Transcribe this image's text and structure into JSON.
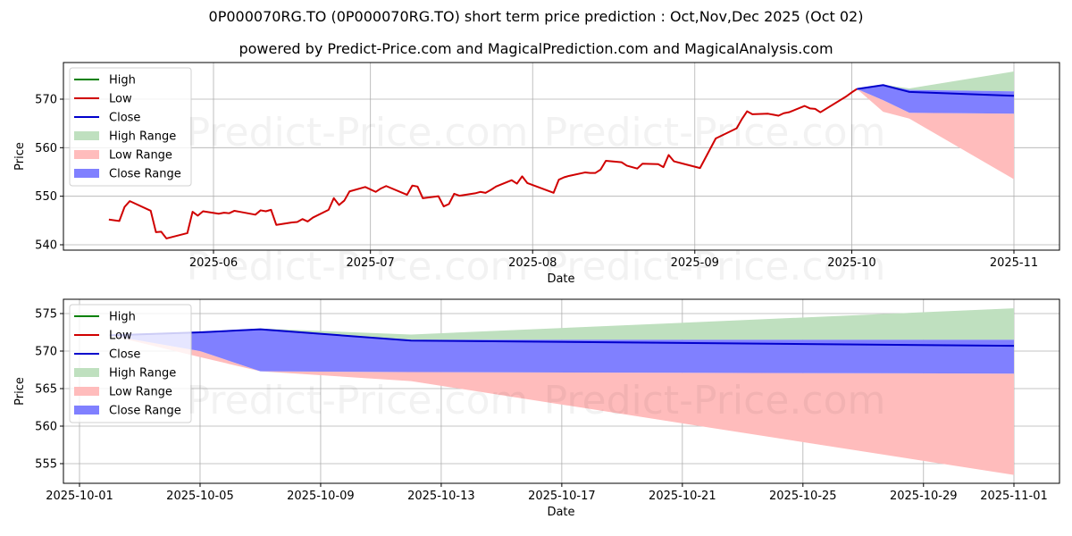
{
  "header": {
    "title": "0P000070RG.TO (0P000070RG.TO) short term price prediction : Oct,Nov,Dec 2025 (Oct 02)",
    "subtitle": "powered by Predict-Price.com and MagicalPrediction.com and MagicalAnalysis.com"
  },
  "watermark": "Predict-Price.com",
  "colors": {
    "high": "#008000",
    "low": "#d00000",
    "close": "#0000cc",
    "high_range": "#bfe0bf",
    "low_range": "#ffbcbc",
    "close_range": "#8080ff",
    "grid": "#b0b0b0"
  },
  "legend": [
    {
      "label": "High",
      "type": "line",
      "color_key": "high"
    },
    {
      "label": "Low",
      "type": "line",
      "color_key": "low"
    },
    {
      "label": "Close",
      "type": "line",
      "color_key": "close"
    },
    {
      "label": "High Range",
      "type": "patch",
      "color_key": "high_range"
    },
    {
      "label": "Low Range",
      "type": "patch",
      "color_key": "low_range"
    },
    {
      "label": "Close Range",
      "type": "patch",
      "color_key": "close_range"
    }
  ],
  "chart_data": [
    {
      "id": "overview",
      "type": "line",
      "title": "",
      "xlabel": "Date",
      "ylabel": "Price",
      "ylim": [
        539.5,
        577.5
      ],
      "yticks": [
        540,
        550,
        560,
        570
      ],
      "xticks": [
        "2025-06",
        "2025-07",
        "2025-08",
        "2025-09",
        "2025-10",
        "2025-11"
      ],
      "xrange": [
        "2025-05-07",
        "2025-11-10"
      ],
      "grid": true,
      "legend_position": "upper left",
      "history": {
        "name": "Low",
        "x": [
          "2025-05-12",
          "2025-05-14",
          "2025-05-15",
          "2025-05-16",
          "2025-05-20",
          "2025-05-21",
          "2025-05-22",
          "2025-05-23",
          "2025-05-27",
          "2025-05-28",
          "2025-05-29",
          "2025-05-30",
          "2025-06-02",
          "2025-06-03",
          "2025-06-04",
          "2025-06-05",
          "2025-06-06",
          "2025-06-09",
          "2025-06-10",
          "2025-06-11",
          "2025-06-12",
          "2025-06-13",
          "2025-06-16",
          "2025-06-17",
          "2025-06-18",
          "2025-06-19",
          "2025-06-20",
          "2025-06-23",
          "2025-06-24",
          "2025-06-25",
          "2025-06-26",
          "2025-06-27",
          "2025-06-30",
          "2025-07-02",
          "2025-07-03",
          "2025-07-04",
          "2025-07-08",
          "2025-07-09",
          "2025-07-10",
          "2025-07-11",
          "2025-07-14",
          "2025-07-15",
          "2025-07-16",
          "2025-07-17",
          "2025-07-18",
          "2025-07-21",
          "2025-07-22",
          "2025-07-23",
          "2025-07-24",
          "2025-07-25",
          "2025-07-28",
          "2025-07-29",
          "2025-07-30",
          "2025-07-31",
          "2025-08-05",
          "2025-08-06",
          "2025-08-07",
          "2025-08-08",
          "2025-08-11",
          "2025-08-12",
          "2025-08-13",
          "2025-08-14",
          "2025-08-15",
          "2025-08-18",
          "2025-08-19",
          "2025-08-20",
          "2025-08-21",
          "2025-08-22",
          "2025-08-25",
          "2025-08-26",
          "2025-08-27",
          "2025-08-28",
          "2025-09-02",
          "2025-09-05",
          "2025-09-09",
          "2025-09-10",
          "2025-09-11",
          "2025-09-12",
          "2025-09-15",
          "2025-09-16",
          "2025-09-17",
          "2025-09-18",
          "2025-09-19",
          "2025-09-22",
          "2025-09-23",
          "2025-09-24",
          "2025-09-25",
          "2025-09-30",
          "2025-10-01",
          "2025-10-02"
        ],
        "values": [
          545.2,
          544.9,
          547.8,
          549.0,
          547.0,
          542.6,
          542.7,
          541.3,
          542.4,
          546.8,
          546.0,
          546.9,
          546.4,
          546.6,
          546.5,
          547.0,
          546.8,
          546.2,
          547.1,
          546.9,
          547.2,
          544.1,
          544.6,
          544.7,
          545.3,
          544.8,
          545.6,
          547.2,
          549.6,
          548.2,
          549.1,
          551.0,
          551.9,
          550.9,
          551.6,
          552.1,
          550.3,
          552.2,
          552.0,
          549.6,
          550.0,
          547.9,
          548.4,
          550.5,
          550.1,
          550.6,
          550.9,
          550.7,
          551.3,
          552.0,
          553.3,
          552.6,
          554.1,
          552.7,
          550.7,
          553.4,
          553.9,
          554.2,
          554.9,
          554.8,
          554.8,
          555.5,
          557.3,
          557.0,
          556.3,
          556.0,
          555.7,
          556.7,
          556.6,
          556.0,
          558.5,
          557.2,
          555.8,
          561.9,
          564.0,
          565.9,
          567.5,
          566.9,
          567.0,
          566.8,
          566.6,
          567.1,
          567.3,
          568.6,
          568.1,
          568.0,
          567.3,
          570.6,
          571.4,
          572.1
        ]
      },
      "forecast": {
        "x": [
          "2025-10-02",
          "2025-10-07",
          "2025-10-12",
          "2025-11-01"
        ],
        "close": [
          572.1,
          572.9,
          571.5,
          570.7
        ],
        "close_range_upper": [
          572.1,
          572.9,
          571.9,
          571.6
        ],
        "close_range_lower": [
          572.1,
          569.8,
          567.2,
          567.0
        ],
        "high_range_upper": [
          572.1,
          573.0,
          572.2,
          575.7
        ],
        "low_range_lower": [
          572.1,
          567.4,
          566.0,
          553.5
        ]
      }
    },
    {
      "id": "zoomed-forecast",
      "type": "line",
      "title": "",
      "xlabel": "Date",
      "ylabel": "Price",
      "ylim": [
        552.5,
        577.0
      ],
      "yticks": [
        555,
        560,
        565,
        570,
        575
      ],
      "xticks": [
        "2025-10-01",
        "2025-10-05",
        "2025-10-09",
        "2025-10-13",
        "2025-10-17",
        "2025-10-21",
        "2025-10-25",
        "2025-10-29",
        "2025-11-01"
      ],
      "grid": true,
      "legend_position": "upper left",
      "forecast": {
        "x": [
          "2025-10-02",
          "2025-10-05",
          "2025-10-07",
          "2025-10-12",
          "2025-11-01"
        ],
        "close": [
          572.1,
          572.5,
          572.9,
          571.4,
          570.7
        ],
        "close_range_upper": [
          572.1,
          572.5,
          572.9,
          571.5,
          571.5
        ],
        "close_range_lower": [
          572.1,
          570.0,
          567.3,
          567.2,
          567.0
        ],
        "high_range_upper": [
          572.1,
          572.6,
          573.0,
          572.2,
          575.7
        ],
        "low_range_lower": [
          572.1,
          569.2,
          567.3,
          566.0,
          553.5
        ]
      }
    }
  ]
}
